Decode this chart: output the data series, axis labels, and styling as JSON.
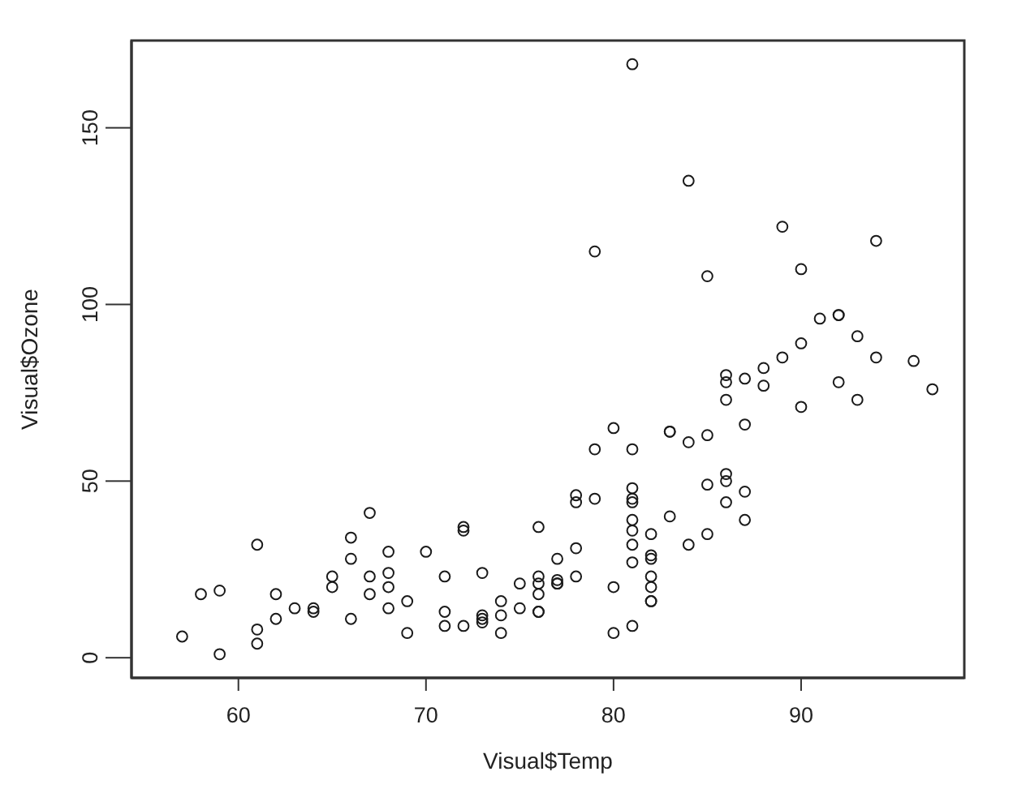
{
  "chart_data": {
    "type": "scatter",
    "xlabel": "Visual$Temp",
    "ylabel": "Visual$Ozone",
    "x": [
      67,
      72,
      74,
      62,
      66,
      65,
      59,
      61,
      74,
      69,
      66,
      68,
      58,
      64,
      66,
      57,
      68,
      62,
      59,
      73,
      61,
      61,
      67,
      81,
      79,
      76,
      82,
      90,
      87,
      82,
      77,
      72,
      65,
      73,
      76,
      84,
      85,
      81,
      83,
      83,
      88,
      92,
      92,
      89,
      73,
      81,
      80,
      81,
      82,
      84,
      87,
      85,
      74,
      86,
      85,
      82,
      86,
      88,
      86,
      83,
      81,
      81,
      81,
      82,
      86,
      85,
      87,
      89,
      90,
      90,
      86,
      82,
      80,
      77,
      79,
      76,
      78,
      78,
      77,
      72,
      79,
      81,
      86,
      97,
      94,
      96,
      94,
      91,
      92,
      93,
      93,
      87,
      84,
      80,
      78,
      75,
      73,
      81,
      76,
      77,
      71,
      71,
      78,
      67,
      76,
      68,
      82,
      64,
      71,
      81,
      69,
      63,
      70,
      75,
      76,
      68
    ],
    "values": [
      41,
      36,
      12,
      18,
      28,
      23,
      19,
      8,
      7,
      16,
      11,
      14,
      18,
      14,
      34,
      6,
      30,
      11,
      1,
      11,
      4,
      32,
      23,
      45,
      115,
      37,
      29,
      71,
      39,
      23,
      21,
      37,
      20,
      12,
      13,
      135,
      49,
      32,
      64,
      40,
      77,
      97,
      97,
      85,
      10,
      27,
      7,
      48,
      35,
      61,
      79,
      63,
      16,
      80,
      108,
      20,
      52,
      82,
      50,
      64,
      59,
      39,
      9,
      16,
      78,
      35,
      66,
      122,
      89,
      110,
      44,
      28,
      65,
      22,
      59,
      23,
      31,
      44,
      21,
      9,
      45,
      168,
      73,
      76,
      118,
      84,
      85,
      96,
      78,
      73,
      91,
      47,
      32,
      20,
      23,
      21,
      24,
      44,
      21,
      28,
      9,
      13,
      46,
      18,
      13,
      24,
      16,
      13,
      23,
      36,
      7,
      14,
      30,
      14,
      18,
      20
    ],
    "color": "#1a1a1a",
    "marker": "circle",
    "xlim": [
      54.3,
      98.7
    ],
    "ylim": [
      -5.7,
      174.7
    ],
    "xticks": [
      60,
      70,
      80,
      90
    ],
    "yticks": [
      0,
      50,
      100,
      150
    ]
  }
}
